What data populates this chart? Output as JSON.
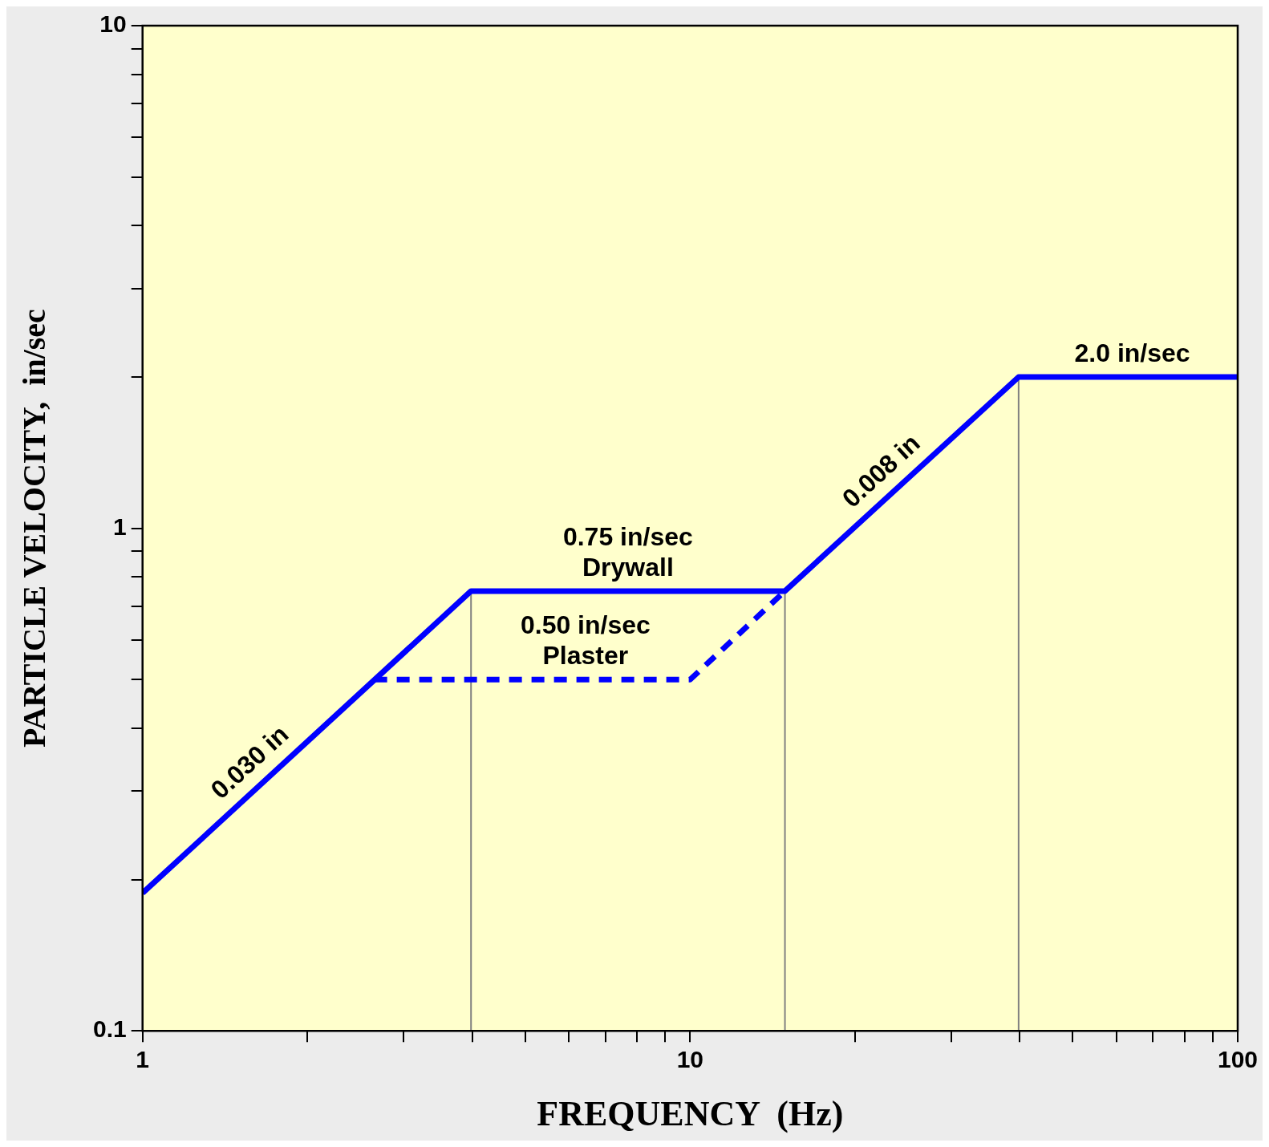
{
  "chart_data": {
    "type": "line",
    "xlabel": "FREQUENCY  (Hz)",
    "ylabel": "PARTICLE VELOCITY,  in/sec",
    "log": "xy",
    "marker": "none",
    "xlim": [
      1,
      100
    ],
    "ylim": [
      0.1,
      10
    ],
    "xticks": [
      1,
      {
        "value": 2,
        "label": null
      },
      {
        "value": 3,
        "label": null
      },
      {
        "value": 4,
        "label": null
      },
      {
        "value": 5,
        "label": null
      },
      {
        "value": 6,
        "label": null
      },
      {
        "value": 7,
        "label": null
      },
      {
        "value": 8,
        "label": null
      },
      {
        "value": 9,
        "label": null
      },
      10,
      {
        "value": 20,
        "label": null
      },
      {
        "value": 30,
        "label": null
      },
      {
        "value": 40,
        "label": null
      },
      {
        "value": 50,
        "label": null
      },
      {
        "value": 60,
        "label": null
      },
      {
        "value": 70,
        "label": null
      },
      {
        "value": 80,
        "label": null
      },
      {
        "value": 90,
        "label": null
      },
      100
    ],
    "yticks": [
      0.1,
      {
        "value": 0.2,
        "label": null
      },
      {
        "value": 0.3,
        "label": null
      },
      {
        "value": 0.4,
        "label": null
      },
      {
        "value": 0.5,
        "label": null
      },
      {
        "value": 0.6,
        "label": null
      },
      {
        "value": 0.7,
        "label": null
      },
      {
        "value": 0.8,
        "label": null
      },
      {
        "value": 0.9,
        "label": null
      },
      1,
      {
        "value": 2,
        "label": null
      },
      {
        "value": 3,
        "label": null
      },
      {
        "value": 4,
        "label": null
      },
      {
        "value": 5,
        "label": null
      },
      {
        "value": 6,
        "label": null
      },
      {
        "value": 7,
        "label": null
      },
      {
        "value": 8,
        "label": null
      },
      {
        "value": 9,
        "label": null
      },
      10
    ],
    "series": [
      {
        "color": "#0000ff",
        "line_style": "dashed",
        "x": [
          2.65,
          10,
          14.9
        ],
        "values": [
          0.5,
          0.5,
          0.75
        ]
      },
      {
        "color": "#0000ff",
        "line_style": "solid",
        "x": [
          1,
          3.98,
          14.9,
          39.8,
          100
        ],
        "values": [
          0.188,
          0.75,
          0.75,
          2.0,
          2.0
        ]
      }
    ],
    "annotations": [
      {
        "text": "0.030 in",
        "x": 1.68,
        "y": 0.316
      },
      {
        "text": "0.75 in/sec",
        "x": 7.7,
        "y": 0.75
      },
      {
        "text": "Drywall",
        "x": 7.7,
        "y": 0.75
      },
      {
        "text": "0.50 in/sec",
        "x": 6.44,
        "y": 0.5
      },
      {
        "text": "Plaster",
        "x": 6.44,
        "y": 0.5
      },
      {
        "text": "0.008 in",
        "x": 23.9,
        "y": 1.2
      },
      {
        "text": "2.0 in/sec",
        "x": 64.2,
        "y": 2.0
      }
    ],
    "ref_lines": [
      {
        "axis": "x",
        "value": 3.98,
        "color": "#808080"
      },
      {
        "axis": "x",
        "value": 14.9,
        "color": "#808080"
      },
      {
        "axis": "x",
        "value": 39.8,
        "color": "#808080"
      }
    ]
  }
}
